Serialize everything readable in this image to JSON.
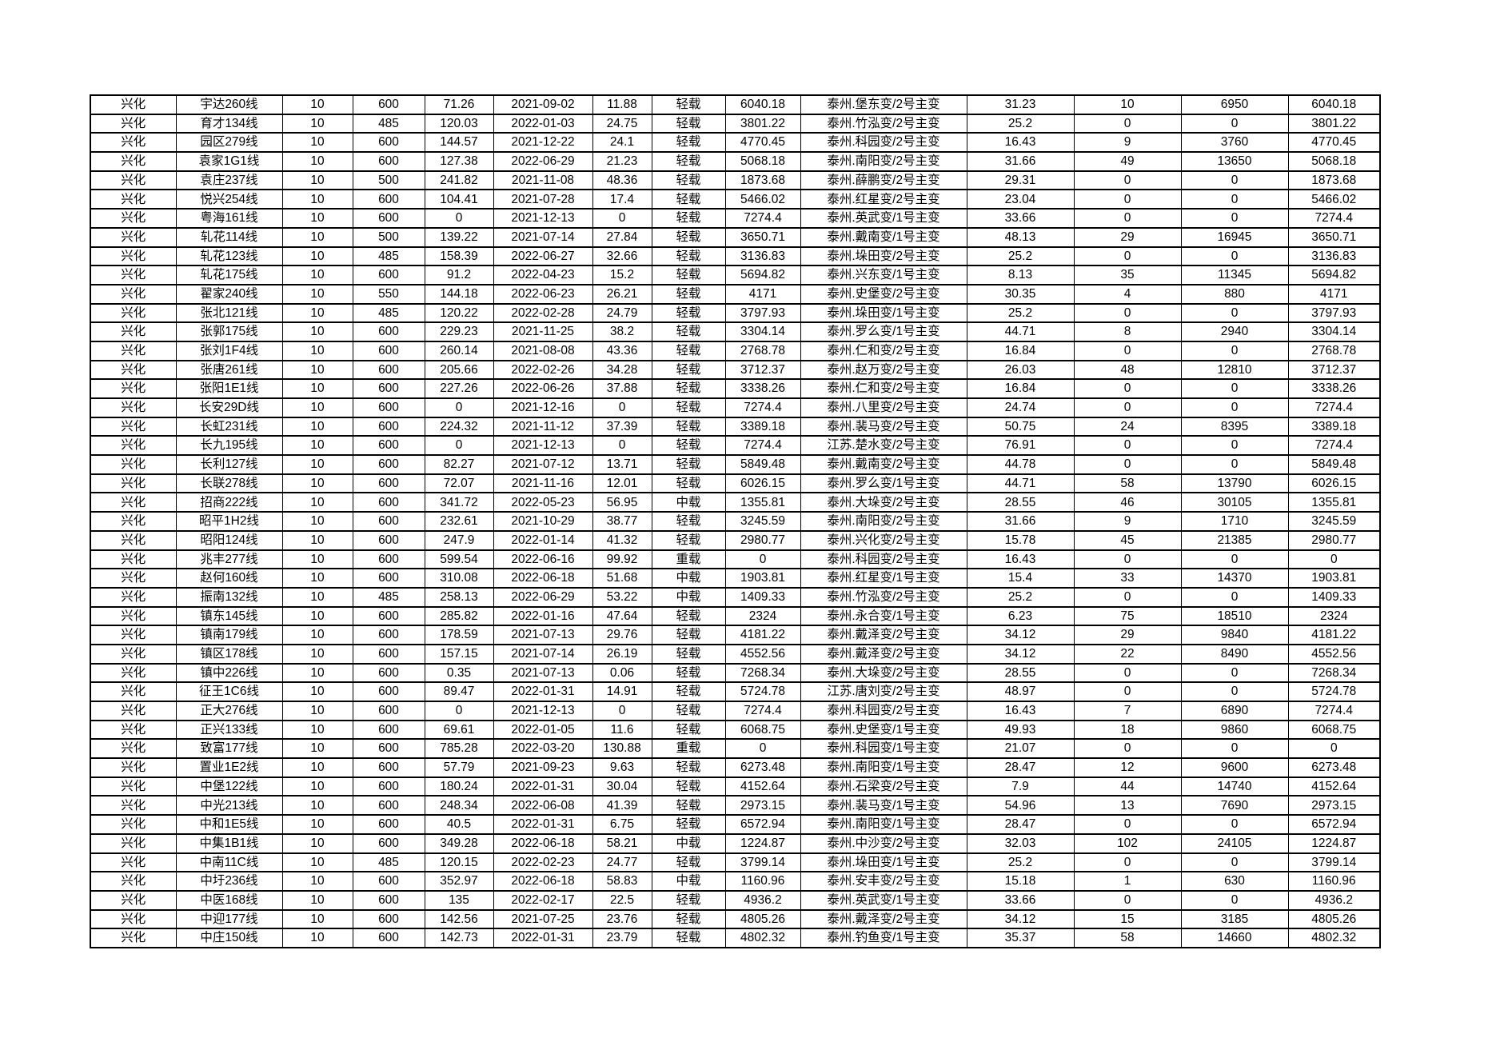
{
  "page": {
    "background_color": "#ffffff",
    "text_color": "#000000",
    "border_color": "#000000"
  },
  "table": {
    "column_count": 14,
    "row_count": 45,
    "rows": [
      [
        "兴化",
        "宇达260线",
        "10",
        "600",
        "71.26",
        "2021-09-02",
        "11.88",
        "轻载",
        "6040.18",
        "泰州.堡东变/2号主变",
        "31.23",
        "10",
        "6950",
        "6040.18"
      ],
      [
        "兴化",
        "育才134线",
        "10",
        "485",
        "120.03",
        "2022-01-03",
        "24.75",
        "轻载",
        "3801.22",
        "泰州.竹泓变/2号主变",
        "25.2",
        "0",
        "0",
        "3801.22"
      ],
      [
        "兴化",
        "园区279线",
        "10",
        "600",
        "144.57",
        "2021-12-22",
        "24.1",
        "轻载",
        "4770.45",
        "泰州.科园变/2号主变",
        "16.43",
        "9",
        "3760",
        "4770.45"
      ],
      [
        "兴化",
        "袁家1G1线",
        "10",
        "600",
        "127.38",
        "2022-06-29",
        "21.23",
        "轻载",
        "5068.18",
        "泰州.南阳变/2号主变",
        "31.66",
        "49",
        "13650",
        "5068.18"
      ],
      [
        "兴化",
        "袁庄237线",
        "10",
        "500",
        "241.82",
        "2021-11-08",
        "48.36",
        "轻载",
        "1873.68",
        "泰州.薛鹏变/2号主变",
        "29.31",
        "0",
        "0",
        "1873.68"
      ],
      [
        "兴化",
        "悦兴254线",
        "10",
        "600",
        "104.41",
        "2021-07-28",
        "17.4",
        "轻载",
        "5466.02",
        "泰州.红星变/2号主变",
        "23.04",
        "0",
        "0",
        "5466.02"
      ],
      [
        "兴化",
        "粤海161线",
        "10",
        "600",
        "0",
        "2021-12-13",
        "0",
        "轻载",
        "7274.4",
        "泰州.英武变/1号主变",
        "33.66",
        "0",
        "0",
        "7274.4"
      ],
      [
        "兴化",
        "轧花114线",
        "10",
        "500",
        "139.22",
        "2021-07-14",
        "27.84",
        "轻载",
        "3650.71",
        "泰州.戴南变/1号主变",
        "48.13",
        "29",
        "16945",
        "3650.71"
      ],
      [
        "兴化",
        "轧花123线",
        "10",
        "485",
        "158.39",
        "2022-06-27",
        "32.66",
        "轻载",
        "3136.83",
        "泰州.垛田变/2号主变",
        "25.2",
        "0",
        "0",
        "3136.83"
      ],
      [
        "兴化",
        "轧花175线",
        "10",
        "600",
        "91.2",
        "2022-04-23",
        "15.2",
        "轻载",
        "5694.82",
        "泰州.兴东变/1号主变",
        "8.13",
        "35",
        "11345",
        "5694.82"
      ],
      [
        "兴化",
        "翟家240线",
        "10",
        "550",
        "144.18",
        "2022-06-23",
        "26.21",
        "轻载",
        "4171",
        "泰州.史堡变/2号主变",
        "30.35",
        "4",
        "880",
        "4171"
      ],
      [
        "兴化",
        "张北121线",
        "10",
        "485",
        "120.22",
        "2022-02-28",
        "24.79",
        "轻载",
        "3797.93",
        "泰州.垛田变/1号主变",
        "25.2",
        "0",
        "0",
        "3797.93"
      ],
      [
        "兴化",
        "张郭175线",
        "10",
        "600",
        "229.23",
        "2021-11-25",
        "38.2",
        "轻载",
        "3304.14",
        "泰州.罗么变/1号主变",
        "44.71",
        "8",
        "2940",
        "3304.14"
      ],
      [
        "兴化",
        "张刘1F4线",
        "10",
        "600",
        "260.14",
        "2021-08-08",
        "43.36",
        "轻载",
        "2768.78",
        "泰州.仁和变/2号主变",
        "16.84",
        "0",
        "0",
        "2768.78"
      ],
      [
        "兴化",
        "张唐261线",
        "10",
        "600",
        "205.66",
        "2022-02-26",
        "34.28",
        "轻载",
        "3712.37",
        "泰州.赵万变/2号主变",
        "26.03",
        "48",
        "12810",
        "3712.37"
      ],
      [
        "兴化",
        "张阳1E1线",
        "10",
        "600",
        "227.26",
        "2022-06-26",
        "37.88",
        "轻载",
        "3338.26",
        "泰州.仁和变/2号主变",
        "16.84",
        "0",
        "0",
        "3338.26"
      ],
      [
        "兴化",
        "长安29D线",
        "10",
        "600",
        "0",
        "2021-12-16",
        "0",
        "轻载",
        "7274.4",
        "泰州.八里变/2号主变",
        "24.74",
        "0",
        "0",
        "7274.4"
      ],
      [
        "兴化",
        "长虹231线",
        "10",
        "600",
        "224.32",
        "2021-11-12",
        "37.39",
        "轻载",
        "3389.18",
        "泰州.裴马变/2号主变",
        "50.75",
        "24",
        "8395",
        "3389.18"
      ],
      [
        "兴化",
        "长九195线",
        "10",
        "600",
        "0",
        "2021-12-13",
        "0",
        "轻载",
        "7274.4",
        "江苏.楚水变/2号主变",
        "76.91",
        "0",
        "0",
        "7274.4"
      ],
      [
        "兴化",
        "长利127线",
        "10",
        "600",
        "82.27",
        "2021-07-12",
        "13.71",
        "轻载",
        "5849.48",
        "泰州.戴南变/2号主变",
        "44.78",
        "0",
        "0",
        "5849.48"
      ],
      [
        "兴化",
        "长联278线",
        "10",
        "600",
        "72.07",
        "2021-11-16",
        "12.01",
        "轻载",
        "6026.15",
        "泰州.罗么变/1号主变",
        "44.71",
        "58",
        "13790",
        "6026.15"
      ],
      [
        "兴化",
        "招商222线",
        "10",
        "600",
        "341.72",
        "2022-05-23",
        "56.95",
        "中载",
        "1355.81",
        "泰州.大垛变/2号主变",
        "28.55",
        "46",
        "30105",
        "1355.81"
      ],
      [
        "兴化",
        "昭平1H2线",
        "10",
        "600",
        "232.61",
        "2021-10-29",
        "38.77",
        "轻载",
        "3245.59",
        "泰州.南阳变/2号主变",
        "31.66",
        "9",
        "1710",
        "3245.59"
      ],
      [
        "兴化",
        "昭阳124线",
        "10",
        "600",
        "247.9",
        "2022-01-14",
        "41.32",
        "轻载",
        "2980.77",
        "泰州.兴化变/2号主变",
        "15.78",
        "45",
        "21385",
        "2980.77"
      ],
      [
        "兴化",
        "兆丰277线",
        "10",
        "600",
        "599.54",
        "2022-06-16",
        "99.92",
        "重载",
        "0",
        "泰州.科园变/2号主变",
        "16.43",
        "0",
        "0",
        "0"
      ],
      [
        "兴化",
        "赵何160线",
        "10",
        "600",
        "310.08",
        "2022-06-18",
        "51.68",
        "中载",
        "1903.81",
        "泰州.红星变/1号主变",
        "15.4",
        "33",
        "14370",
        "1903.81"
      ],
      [
        "兴化",
        "振南132线",
        "10",
        "485",
        "258.13",
        "2022-06-29",
        "53.22",
        "中载",
        "1409.33",
        "泰州.竹泓变/2号主变",
        "25.2",
        "0",
        "0",
        "1409.33"
      ],
      [
        "兴化",
        "镇东145线",
        "10",
        "600",
        "285.82",
        "2022-01-16",
        "47.64",
        "轻载",
        "2324",
        "泰州.永合变/1号主变",
        "6.23",
        "75",
        "18510",
        "2324"
      ],
      [
        "兴化",
        "镇南179线",
        "10",
        "600",
        "178.59",
        "2021-07-13",
        "29.76",
        "轻载",
        "4181.22",
        "泰州.戴泽变/2号主变",
        "34.12",
        "29",
        "9840",
        "4181.22"
      ],
      [
        "兴化",
        "镇区178线",
        "10",
        "600",
        "157.15",
        "2021-07-14",
        "26.19",
        "轻载",
        "4552.56",
        "泰州.戴泽变/2号主变",
        "34.12",
        "22",
        "8490",
        "4552.56"
      ],
      [
        "兴化",
        "镇中226线",
        "10",
        "600",
        "0.35",
        "2021-07-13",
        "0.06",
        "轻载",
        "7268.34",
        "泰州.大垛变/2号主变",
        "28.55",
        "0",
        "0",
        "7268.34"
      ],
      [
        "兴化",
        "征王1C6线",
        "10",
        "600",
        "89.47",
        "2022-01-31",
        "14.91",
        "轻载",
        "5724.78",
        "江苏.唐刘变/2号主变",
        "48.97",
        "0",
        "0",
        "5724.78"
      ],
      [
        "兴化",
        "正大276线",
        "10",
        "600",
        "0",
        "2021-12-13",
        "0",
        "轻载",
        "7274.4",
        "泰州.科园变/2号主变",
        "16.43",
        "7",
        "6890",
        "7274.4"
      ],
      [
        "兴化",
        "正兴133线",
        "10",
        "600",
        "69.61",
        "2022-01-05",
        "11.6",
        "轻载",
        "6068.75",
        "泰州.史堡变/1号主变",
        "49.93",
        "18",
        "9860",
        "6068.75"
      ],
      [
        "兴化",
        "致富177线",
        "10",
        "600",
        "785.28",
        "2022-03-20",
        "130.88",
        "重载",
        "0",
        "泰州.科园变/1号主变",
        "21.07",
        "0",
        "0",
        "0"
      ],
      [
        "兴化",
        "置业1E2线",
        "10",
        "600",
        "57.79",
        "2021-09-23",
        "9.63",
        "轻载",
        "6273.48",
        "泰州.南阳变/1号主变",
        "28.47",
        "12",
        "9600",
        "6273.48"
      ],
      [
        "兴化",
        "中堡122线",
        "10",
        "600",
        "180.24",
        "2022-01-31",
        "30.04",
        "轻载",
        "4152.64",
        "泰州.石梁变/2号主变",
        "7.9",
        "44",
        "14740",
        "4152.64"
      ],
      [
        "兴化",
        "中光213线",
        "10",
        "600",
        "248.34",
        "2022-06-08",
        "41.39",
        "轻载",
        "2973.15",
        "泰州.裴马变/1号主变",
        "54.96",
        "13",
        "7690",
        "2973.15"
      ],
      [
        "兴化",
        "中和1E5线",
        "10",
        "600",
        "40.5",
        "2022-01-31",
        "6.75",
        "轻载",
        "6572.94",
        "泰州.南阳变/1号主变",
        "28.47",
        "0",
        "0",
        "6572.94"
      ],
      [
        "兴化",
        "中集1B1线",
        "10",
        "600",
        "349.28",
        "2022-06-18",
        "58.21",
        "中载",
        "1224.87",
        "泰州.中沙变/2号主变",
        "32.03",
        "102",
        "24105",
        "1224.87"
      ],
      [
        "兴化",
        "中南11C线",
        "10",
        "485",
        "120.15",
        "2022-02-23",
        "24.77",
        "轻载",
        "3799.14",
        "泰州.垛田变/1号主变",
        "25.2",
        "0",
        "0",
        "3799.14"
      ],
      [
        "兴化",
        "中圩236线",
        "10",
        "600",
        "352.97",
        "2022-06-18",
        "58.83",
        "中载",
        "1160.96",
        "泰州.安丰变/2号主变",
        "15.18",
        "1",
        "630",
        "1160.96"
      ],
      [
        "兴化",
        "中医168线",
        "10",
        "600",
        "135",
        "2022-02-17",
        "22.5",
        "轻载",
        "4936.2",
        "泰州.英武变/1号主变",
        "33.66",
        "0",
        "0",
        "4936.2"
      ],
      [
        "兴化",
        "中迎177线",
        "10",
        "600",
        "142.56",
        "2021-07-25",
        "23.76",
        "轻载",
        "4805.26",
        "泰州.戴泽变/2号主变",
        "34.12",
        "15",
        "3185",
        "4805.26"
      ],
      [
        "兴化",
        "中庄150线",
        "10",
        "600",
        "142.73",
        "2022-01-31",
        "23.79",
        "轻载",
        "4802.32",
        "泰州.钓鱼变/1号主变",
        "35.37",
        "58",
        "14660",
        "4802.32"
      ]
    ]
  }
}
